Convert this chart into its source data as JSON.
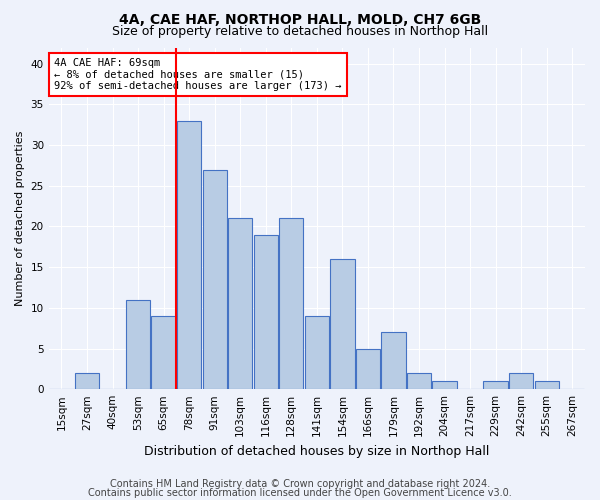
{
  "title1": "4A, CAE HAF, NORTHOP HALL, MOLD, CH7 6GB",
  "title2": "Size of property relative to detached houses in Northop Hall",
  "xlabel": "Distribution of detached houses by size in Northop Hall",
  "ylabel": "Number of detached properties",
  "categories": [
    "15sqm",
    "27sqm",
    "40sqm",
    "53sqm",
    "65sqm",
    "78sqm",
    "91sqm",
    "103sqm",
    "116sqm",
    "128sqm",
    "141sqm",
    "154sqm",
    "166sqm",
    "179sqm",
    "192sqm",
    "204sqm",
    "217sqm",
    "229sqm",
    "242sqm",
    "255sqm",
    "267sqm"
  ],
  "values": [
    0,
    2,
    0,
    11,
    9,
    33,
    27,
    21,
    19,
    21,
    9,
    16,
    5,
    7,
    2,
    1,
    0,
    1,
    2,
    1,
    0
  ],
  "bar_color": "#b8cce4",
  "bar_edge_color": "#4472c4",
  "vline_color": "red",
  "vline_x_index": 4.5,
  "annotation_text_line1": "4A CAE HAF: 69sqm",
  "annotation_text_line2": "← 8% of detached houses are smaller (15)",
  "annotation_text_line3": "92% of semi-detached houses are larger (173) →",
  "annotation_box_color": "white",
  "annotation_box_edge": "red",
  "ylim": [
    0,
    42
  ],
  "yticks": [
    0,
    5,
    10,
    15,
    20,
    25,
    30,
    35,
    40
  ],
  "footer1": "Contains HM Land Registry data © Crown copyright and database right 2024.",
  "footer2": "Contains public sector information licensed under the Open Government Licence v3.0.",
  "bg_color": "#eef2fb",
  "grid_color": "#ffffff",
  "title1_fontsize": 10,
  "title2_fontsize": 9,
  "xlabel_fontsize": 9,
  "ylabel_fontsize": 8,
  "tick_fontsize": 7.5,
  "annotation_fontsize": 7.5,
  "footer_fontsize": 7
}
